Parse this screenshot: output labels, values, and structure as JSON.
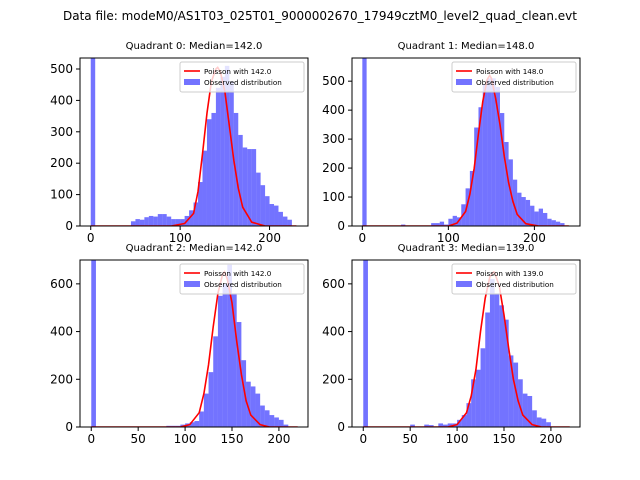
{
  "suptitle": "Data file: modeM0/AS1T03_025T01_9000002670_17949cztM0_level2_quad_clean.evt",
  "colors": {
    "hist": "#0000ff",
    "poisson": "#ff0000"
  },
  "chart_data": [
    {
      "type": "bar",
      "title": "Quadrant 0: Median=142.0",
      "median": 142.0,
      "xlim": [
        -12,
        243
      ],
      "ylim": [
        0,
        535
      ],
      "xticks": [
        0,
        100,
        200
      ],
      "yticks": [
        0,
        100,
        200,
        300,
        400,
        500
      ],
      "legend": [
        "Poisson with 142.0",
        "Observed distribution"
      ],
      "legend_position": "top-right",
      "bin_width": 5,
      "bins": [
        [
          0,
          535
        ],
        [
          45,
          15
        ],
        [
          50,
          22
        ],
        [
          55,
          20
        ],
        [
          60,
          28
        ],
        [
          65,
          32
        ],
        [
          70,
          30
        ],
        [
          75,
          38
        ],
        [
          80,
          38
        ],
        [
          85,
          30
        ],
        [
          90,
          22
        ],
        [
          95,
          22
        ],
        [
          100,
          22
        ],
        [
          105,
          32
        ],
        [
          110,
          50
        ],
        [
          115,
          75
        ],
        [
          120,
          140
        ],
        [
          125,
          240
        ],
        [
          130,
          340
        ],
        [
          135,
          360
        ],
        [
          140,
          440
        ],
        [
          145,
          475
        ],
        [
          150,
          510
        ],
        [
          155,
          460
        ],
        [
          160,
          360
        ],
        [
          165,
          290
        ],
        [
          170,
          250
        ],
        [
          175,
          245
        ],
        [
          180,
          245
        ],
        [
          185,
          170
        ],
        [
          190,
          130
        ],
        [
          195,
          95
        ],
        [
          200,
          70
        ],
        [
          205,
          65
        ],
        [
          210,
          45
        ],
        [
          215,
          30
        ],
        [
          220,
          20
        ]
      ],
      "poisson_x": [
        0,
        90,
        105,
        115,
        120,
        125,
        130,
        135,
        140,
        142,
        145,
        150,
        155,
        160,
        165,
        170,
        180,
        195,
        230
      ],
      "poisson_y": [
        0,
        0,
        8,
        40,
        110,
        230,
        360,
        460,
        500,
        505,
        490,
        430,
        320,
        210,
        120,
        60,
        12,
        0,
        0
      ]
    },
    {
      "type": "bar",
      "title": "Quadrant 1: Median=148.0",
      "median": 148.0,
      "xlim": [
        -12,
        253
      ],
      "ylim": [
        0,
        580
      ],
      "xticks": [
        0,
        100,
        200
      ],
      "yticks": [
        0,
        100,
        200,
        300,
        400,
        500
      ],
      "legend": [
        "Poisson with 148.0",
        "Observed distribution"
      ],
      "legend_position": "top-right",
      "bin_width": 5,
      "bins": [
        [
          0,
          580
        ],
        [
          45,
          5
        ],
        [
          80,
          10
        ],
        [
          85,
          10
        ],
        [
          90,
          15
        ],
        [
          95,
          5
        ],
        [
          100,
          25
        ],
        [
          105,
          35
        ],
        [
          110,
          30
        ],
        [
          115,
          75
        ],
        [
          120,
          130
        ],
        [
          125,
          190
        ],
        [
          130,
          340
        ],
        [
          135,
          410
        ],
        [
          140,
          490
        ],
        [
          145,
          510
        ],
        [
          150,
          510
        ],
        [
          155,
          480
        ],
        [
          160,
          390
        ],
        [
          165,
          290
        ],
        [
          170,
          230
        ],
        [
          175,
          160
        ],
        [
          180,
          115
        ],
        [
          185,
          100
        ],
        [
          190,
          90
        ],
        [
          195,
          70
        ],
        [
          200,
          50
        ],
        [
          205,
          60
        ],
        [
          210,
          45
        ],
        [
          215,
          25
        ],
        [
          220,
          20
        ],
        [
          225,
          15
        ],
        [
          230,
          10
        ]
      ],
      "poisson_x": [
        0,
        100,
        110,
        120,
        125,
        130,
        135,
        140,
        145,
        148,
        150,
        155,
        160,
        165,
        170,
        175,
        180,
        190,
        205,
        240
      ],
      "poisson_y": [
        0,
        0,
        10,
        50,
        110,
        200,
        320,
        430,
        505,
        520,
        510,
        440,
        350,
        240,
        150,
        85,
        40,
        8,
        0,
        0
      ]
    },
    {
      "type": "bar",
      "title": "Quadrant 2: Median=142.0",
      "median": 142.0,
      "xlim": [
        -12,
        231
      ],
      "ylim": [
        0,
        700
      ],
      "xticks": [
        0,
        50,
        100,
        150,
        200
      ],
      "yticks": [
        0,
        200,
        400,
        600
      ],
      "legend": [
        "Poisson with 142.0",
        "Observed distribution"
      ],
      "legend_position": "top-right",
      "bin_width": 5,
      "bins": [
        [
          0,
          700
        ],
        [
          80,
          5
        ],
        [
          85,
          5
        ],
        [
          90,
          5
        ],
        [
          95,
          10
        ],
        [
          100,
          15
        ],
        [
          105,
          20
        ],
        [
          110,
          25
        ],
        [
          115,
          65
        ],
        [
          120,
          140
        ],
        [
          125,
          230
        ],
        [
          130,
          380
        ],
        [
          135,
          550
        ],
        [
          140,
          600
        ],
        [
          145,
          680
        ],
        [
          150,
          560
        ],
        [
          155,
          440
        ],
        [
          160,
          280
        ],
        [
          165,
          190
        ],
        [
          170,
          170
        ],
        [
          175,
          140
        ],
        [
          180,
          90
        ],
        [
          185,
          70
        ],
        [
          190,
          50
        ],
        [
          195,
          40
        ],
        [
          200,
          30
        ],
        [
          205,
          10
        ]
      ],
      "poisson_x": [
        0,
        95,
        105,
        115,
        120,
        125,
        130,
        135,
        140,
        142,
        145,
        150,
        155,
        160,
        165,
        170,
        180,
        190,
        220
      ],
      "poisson_y": [
        0,
        0,
        10,
        60,
        140,
        260,
        420,
        560,
        640,
        650,
        620,
        520,
        360,
        220,
        110,
        50,
        10,
        0,
        0
      ]
    },
    {
      "type": "bar",
      "title": "Quadrant 3: Median=139.0",
      "median": 139.0,
      "xlim": [
        -12,
        231
      ],
      "ylim": [
        0,
        700
      ],
      "xticks": [
        0,
        50,
        100,
        150,
        200
      ],
      "yticks": [
        0,
        200,
        400,
        600
      ],
      "legend": [
        "Poisson with 139.0",
        "Observed distribution"
      ],
      "legend_position": "top-right",
      "bin_width": 5,
      "bins": [
        [
          0,
          700
        ],
        [
          50,
          10
        ],
        [
          65,
          10
        ],
        [
          70,
          8
        ],
        [
          80,
          15
        ],
        [
          85,
          10
        ],
        [
          90,
          15
        ],
        [
          95,
          15
        ],
        [
          100,
          30
        ],
        [
          105,
          50
        ],
        [
          110,
          100
        ],
        [
          115,
          200
        ],
        [
          120,
          240
        ],
        [
          125,
          330
        ],
        [
          130,
          480
        ],
        [
          135,
          620
        ],
        [
          140,
          560
        ],
        [
          145,
          510
        ],
        [
          150,
          450
        ],
        [
          155,
          300
        ],
        [
          160,
          270
        ],
        [
          165,
          200
        ],
        [
          170,
          140
        ],
        [
          175,
          130
        ],
        [
          180,
          70
        ],
        [
          185,
          40
        ],
        [
          190,
          35
        ],
        [
          195,
          20
        ]
      ],
      "poisson_x": [
        0,
        90,
        100,
        110,
        115,
        120,
        125,
        130,
        135,
        139,
        140,
        145,
        150,
        155,
        160,
        165,
        170,
        180,
        190,
        220
      ],
      "poisson_y": [
        0,
        0,
        10,
        60,
        130,
        240,
        400,
        540,
        630,
        650,
        648,
        590,
        470,
        330,
        200,
        110,
        50,
        10,
        0,
        0
      ]
    }
  ]
}
